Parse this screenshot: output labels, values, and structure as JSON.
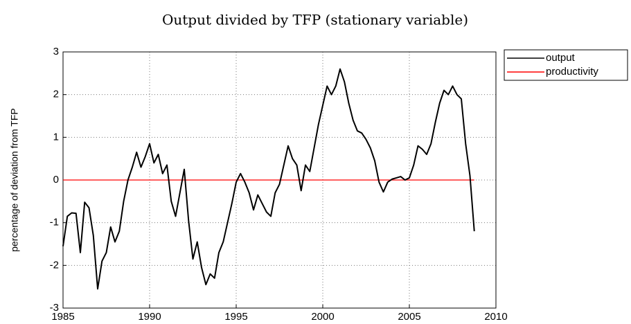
{
  "chart_data": {
    "type": "line",
    "title": "Output divided by TFP (stationary variable)",
    "y_label": "percentage of deviation from TFP",
    "xlim": [
      1985,
      2010
    ],
    "xticks": [
      1985,
      1990,
      1995,
      2000,
      2005,
      2010
    ],
    "ylim": [
      -3,
      3
    ],
    "yticks": [
      -3,
      -2,
      -1,
      0,
      1,
      2,
      3
    ],
    "grid": true,
    "legend": "outside-right",
    "x": [
      1985,
      1985.25,
      1985.5,
      1985.75,
      1986,
      1986.25,
      1986.5,
      1986.75,
      1987,
      1987.25,
      1987.5,
      1987.75,
      1988,
      1988.25,
      1988.5,
      1988.75,
      1989,
      1989.25,
      1989.5,
      1989.75,
      1990,
      1990.25,
      1990.5,
      1990.75,
      1991,
      1991.25,
      1991.5,
      1991.75,
      1992,
      1992.25,
      1992.5,
      1992.75,
      1993,
      1993.25,
      1993.5,
      1993.75,
      1994,
      1994.25,
      1994.5,
      1994.75,
      1995,
      1995.25,
      1995.5,
      1995.75,
      1996,
      1996.25,
      1996.5,
      1996.75,
      1997,
      1997.25,
      1997.5,
      1997.75,
      1998,
      1998.25,
      1998.5,
      1998.75,
      1999,
      1999.25,
      1999.5,
      1999.75,
      2000,
      2000.25,
      2000.5,
      2000.75,
      2001,
      2001.25,
      2001.5,
      2001.75,
      2002,
      2002.25,
      2002.5,
      2002.75,
      2003,
      2003.25,
      2003.5,
      2003.75,
      2004,
      2004.25,
      2004.5,
      2004.75,
      2005,
      2005.25,
      2005.5,
      2005.75,
      2006,
      2006.25,
      2006.5,
      2006.75,
      2007,
      2007.25,
      2007.5,
      2007.75,
      2008,
      2008.25,
      2008.5,
      2008.75
    ],
    "series": [
      {
        "name": "output",
        "color": "#000000",
        "values": [
          -1.55,
          -0.85,
          -0.77,
          -0.78,
          -1.7,
          -0.52,
          -0.65,
          -1.3,
          -2.55,
          -1.9,
          -1.7,
          -1.1,
          -1.45,
          -1.2,
          -0.5,
          0.0,
          0.3,
          0.65,
          0.3,
          0.55,
          0.85,
          0.4,
          0.6,
          0.15,
          0.35,
          -0.5,
          -0.85,
          -0.3,
          0.25,
          -0.95,
          -1.85,
          -1.45,
          -2.05,
          -2.45,
          -2.2,
          -2.3,
          -1.7,
          -1.45,
          -1.0,
          -0.55,
          -0.05,
          0.15,
          -0.05,
          -0.3,
          -0.7,
          -0.35,
          -0.55,
          -0.75,
          -0.85,
          -0.3,
          -0.1,
          0.35,
          0.8,
          0.5,
          0.35,
          -0.25,
          0.35,
          0.2,
          0.75,
          1.3,
          1.75,
          2.2,
          2.0,
          2.2,
          2.6,
          2.3,
          1.8,
          1.4,
          1.15,
          1.1,
          0.95,
          0.75,
          0.45,
          -0.05,
          -0.28,
          -0.05,
          0.02,
          0.05,
          0.08,
          0.0,
          0.05,
          0.35,
          0.8,
          0.72,
          0.6,
          0.85,
          1.35,
          1.8,
          2.1,
          2.0,
          2.2,
          2.0,
          1.9,
          0.85,
          0.1,
          -1.2
        ]
      },
      {
        "name": "productivity",
        "color": "#ff0000",
        "values": [
          0,
          0,
          0,
          0,
          0,
          0,
          0,
          0,
          0,
          0,
          0,
          0,
          0,
          0,
          0,
          0,
          0,
          0,
          0,
          0,
          0,
          0,
          0,
          0,
          0,
          0,
          0,
          0,
          0,
          0,
          0,
          0,
          0,
          0,
          0,
          0,
          0,
          0,
          0,
          0,
          0,
          0,
          0,
          0,
          0,
          0,
          0,
          0,
          0,
          0,
          0,
          0,
          0,
          0,
          0,
          0,
          0,
          0,
          0,
          0,
          0,
          0,
          0,
          0,
          0,
          0,
          0,
          0,
          0,
          0,
          0,
          0,
          0,
          0,
          0,
          0,
          0,
          0,
          0,
          0,
          0,
          0,
          0,
          0,
          0,
          0,
          0,
          0,
          0,
          0,
          0,
          0,
          0,
          0,
          0,
          0
        ]
      }
    ]
  }
}
